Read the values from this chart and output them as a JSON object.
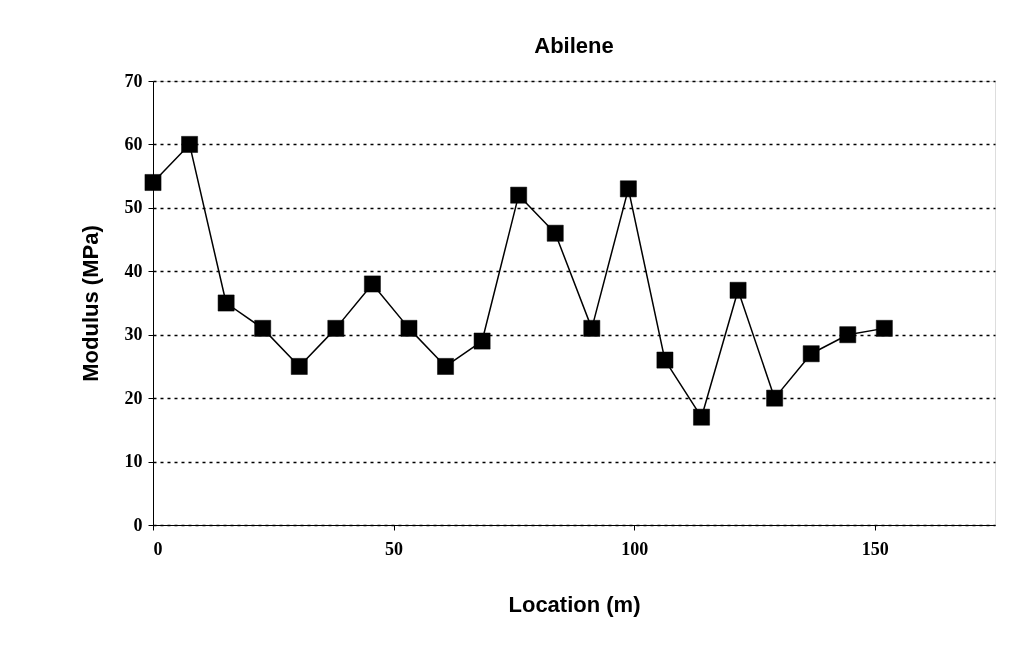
{
  "chart_data": {
    "type": "line",
    "title": "Abilene",
    "xlabel": "Location (m)",
    "ylabel": "Modulus  (MPa)",
    "x": [
      0,
      7.6,
      15.2,
      22.8,
      30.4,
      38,
      45.6,
      53.2,
      60.8,
      68.4,
      76,
      83.6,
      91.2,
      98.8,
      106.4,
      114,
      121.6,
      129.2,
      136.8,
      144.4,
      152
    ],
    "series": [
      {
        "color": "#000000",
        "values": [
          54,
          60,
          35,
          31,
          25,
          31,
          38,
          31,
          25,
          29,
          52,
          46,
          31,
          53,
          26,
          17,
          37,
          20,
          27,
          30,
          31
        ]
      }
    ],
    "xlim": [
      0,
      175
    ],
    "xticks": [
      0,
      50,
      100,
      150
    ],
    "ylim": [
      0,
      70
    ],
    "yticks": [
      0,
      10,
      20,
      30,
      40,
      50,
      60,
      70
    ],
    "grid": "y",
    "marker": "square",
    "line_style": "solid"
  }
}
